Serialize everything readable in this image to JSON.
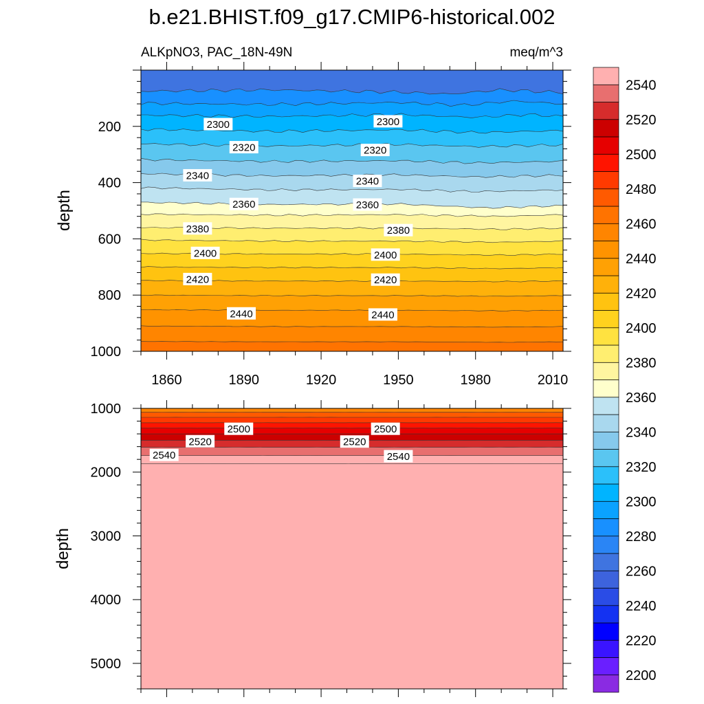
{
  "figure": {
    "title": "b.e21.BHIST.f09_g17.CMIP6-historical.002",
    "left_label": "ALKpNO3, PAC_18N-49N",
    "right_label": "meq/m^3"
  },
  "chart_data": [
    {
      "type": "contour",
      "panel": "upper",
      "ylabel": "depth",
      "xlim": [
        1850,
        2014
      ],
      "ylim": [
        1000,
        0
      ],
      "x_ticks": [
        1860,
        1890,
        1920,
        1950,
        1980,
        2010
      ],
      "y_ticks": [
        200,
        400,
        600,
        800,
        1000
      ],
      "contour_lines": [
        {
          "level": 2280,
          "depth_by_year": [
            [
              1850,
              75
            ],
            [
              1900,
              70
            ],
            [
              1950,
              78
            ],
            [
              1970,
              85
            ],
            [
              1990,
              70
            ],
            [
              2014,
              80
            ]
          ]
        },
        {
          "level": 2290,
          "depth_by_year": [
            [
              1850,
              118
            ],
            [
              1900,
              122
            ],
            [
              1950,
              115
            ],
            [
              1975,
              125
            ],
            [
              1995,
              110
            ],
            [
              2014,
              120
            ]
          ]
        },
        {
          "level": 2300,
          "depth_by_year": [
            [
              1850,
              160
            ],
            [
              1900,
              165
            ],
            [
              1950,
              158
            ],
            [
              1980,
              168
            ],
            [
              2000,
              158
            ],
            [
              2014,
              165
            ]
          ]
        },
        {
          "level": 2310,
          "depth_by_year": [
            [
              1850,
              210
            ],
            [
              1900,
              218
            ],
            [
              1950,
              212
            ],
            [
              1980,
              222
            ],
            [
              2014,
              215
            ]
          ]
        },
        {
          "level": 2320,
          "depth_by_year": [
            [
              1850,
              262
            ],
            [
              1900,
              270
            ],
            [
              1950,
              264
            ],
            [
              1980,
              272
            ],
            [
              2014,
              266
            ]
          ]
        },
        {
          "level": 2330,
          "depth_by_year": [
            [
              1850,
              318
            ],
            [
              1900,
              325
            ],
            [
              1950,
              322
            ],
            [
              1980,
              330
            ],
            [
              2014,
              324
            ]
          ]
        },
        {
          "level": 2340,
          "depth_by_year": [
            [
              1850,
              368
            ],
            [
              1900,
              376
            ],
            [
              1950,
              372
            ],
            [
              1980,
              380
            ],
            [
              2014,
              374
            ]
          ]
        },
        {
          "level": 2350,
          "depth_by_year": [
            [
              1850,
              418
            ],
            [
              1900,
              426
            ],
            [
              1950,
              424
            ],
            [
              1980,
              432
            ],
            [
              2014,
              426
            ]
          ]
        },
        {
          "level": 2360,
          "depth_by_year": [
            [
              1850,
              470
            ],
            [
              1900,
              478
            ],
            [
              1950,
              476
            ],
            [
              1985,
              490
            ],
            [
              2014,
              482
            ]
          ]
        },
        {
          "level": 2370,
          "depth_by_year": [
            [
              1850,
              512
            ],
            [
              1900,
              516
            ],
            [
              1950,
              514
            ],
            [
              1990,
              520
            ],
            [
              2014,
              514
            ]
          ]
        },
        {
          "level": 2380,
          "depth_by_year": [
            [
              1850,
              560
            ],
            [
              1900,
              562
            ],
            [
              1950,
              562
            ],
            [
              1990,
              566
            ],
            [
              2014,
              562
            ]
          ]
        },
        {
          "level": 2390,
          "depth_by_year": [
            [
              1850,
              604
            ],
            [
              1900,
              608
            ],
            [
              1950,
              608
            ],
            [
              1990,
              612
            ],
            [
              2014,
              608
            ]
          ]
        },
        {
          "level": 2400,
          "depth_by_year": [
            [
              1850,
              652
            ],
            [
              1900,
              654
            ],
            [
              1950,
              654
            ],
            [
              1990,
              658
            ],
            [
              2014,
              654
            ]
          ]
        },
        {
          "level": 2410,
          "depth_by_year": [
            [
              1850,
              700
            ],
            [
              1900,
              702
            ],
            [
              1950,
              702
            ],
            [
              1990,
              706
            ],
            [
              2014,
              702
            ]
          ]
        },
        {
          "level": 2420,
          "depth_by_year": [
            [
              1850,
              748
            ],
            [
              1900,
              750
            ],
            [
              1950,
              750
            ],
            [
              1990,
              752
            ],
            [
              2014,
              750
            ]
          ]
        },
        {
          "level": 2430,
          "depth_by_year": [
            [
              1850,
              800
            ],
            [
              1900,
              802
            ],
            [
              1950,
              802
            ],
            [
              1990,
              804
            ],
            [
              2014,
              802
            ]
          ]
        },
        {
          "level": 2440,
          "depth_by_year": [
            [
              1850,
              852
            ],
            [
              1900,
              854
            ],
            [
              1950,
              854
            ],
            [
              1990,
              856
            ],
            [
              2014,
              854
            ]
          ]
        },
        {
          "level": 2450,
          "depth_by_year": [
            [
              1850,
              910
            ],
            [
              1900,
              912
            ],
            [
              1950,
              912
            ],
            [
              1990,
              914
            ],
            [
              2014,
              912
            ]
          ]
        },
        {
          "level": 2460,
          "depth_by_year": [
            [
              1850,
              965
            ],
            [
              1900,
              966
            ],
            [
              1950,
              966
            ],
            [
              1990,
              968
            ],
            [
              2014,
              966
            ]
          ]
        }
      ],
      "labels": [
        {
          "text": "2300",
          "year": 1880,
          "depth": 192
        },
        {
          "text": "2300",
          "year": 1946,
          "depth": 182
        },
        {
          "text": "2320",
          "year": 1890,
          "depth": 274
        },
        {
          "text": "2320",
          "year": 1941,
          "depth": 284
        },
        {
          "text": "2340",
          "year": 1872,
          "depth": 374
        },
        {
          "text": "2340",
          "year": 1938,
          "depth": 394
        },
        {
          "text": "2360",
          "year": 1890,
          "depth": 476
        },
        {
          "text": "2360",
          "year": 1938,
          "depth": 478
        },
        {
          "text": "2380",
          "year": 1872,
          "depth": 563
        },
        {
          "text": "2380",
          "year": 1950,
          "depth": 569
        },
        {
          "text": "2400",
          "year": 1875,
          "depth": 650
        },
        {
          "text": "2400",
          "year": 1945,
          "depth": 656
        },
        {
          "text": "2420",
          "year": 1872,
          "depth": 743
        },
        {
          "text": "2420",
          "year": 1945,
          "depth": 745
        },
        {
          "text": "2440",
          "year": 1889,
          "depth": 865
        },
        {
          "text": "2440",
          "year": 1944,
          "depth": 869
        }
      ]
    },
    {
      "type": "contour",
      "panel": "lower",
      "ylabel": "depth",
      "xlim": [
        1850,
        2014
      ],
      "ylim": [
        5400,
        1000
      ],
      "y_ticks": [
        1000,
        2000,
        3000,
        4000,
        5000
      ],
      "contour_lines": [
        {
          "level": 2470,
          "depth_by_year": [
            [
              1850,
              1060
            ],
            [
              2014,
              1060
            ]
          ]
        },
        {
          "level": 2480,
          "depth_by_year": [
            [
              1850,
              1140
            ],
            [
              2014,
              1140
            ]
          ]
        },
        {
          "level": 2490,
          "depth_by_year": [
            [
              1850,
              1225
            ],
            [
              2014,
              1225
            ]
          ]
        },
        {
          "level": 2500,
          "depth_by_year": [
            [
              1850,
              1310
            ],
            [
              2014,
              1310
            ]
          ]
        },
        {
          "level": 2510,
          "depth_by_year": [
            [
              1850,
              1400
            ],
            [
              2014,
              1400
            ]
          ]
        },
        {
          "level": 2520,
          "depth_by_year": [
            [
              1850,
              1500
            ],
            [
              2014,
              1500
            ]
          ]
        },
        {
          "level": 2530,
          "depth_by_year": [
            [
              1850,
              1610
            ],
            [
              2014,
              1610
            ]
          ]
        },
        {
          "level": 2540,
          "depth_by_year": [
            [
              1850,
              1740
            ],
            [
              2014,
              1740
            ]
          ]
        },
        {
          "level": 2550,
          "depth_by_year": [
            [
              1850,
              1870
            ],
            [
              2014,
              1870
            ]
          ]
        }
      ],
      "labels": [
        {
          "text": "2500",
          "year": 1888,
          "depth": 1320
        },
        {
          "text": "2500",
          "year": 1945,
          "depth": 1320
        },
        {
          "text": "2520",
          "year": 1873,
          "depth": 1515
        },
        {
          "text": "2520",
          "year": 1933,
          "depth": 1520
        },
        {
          "text": "2540",
          "year": 1859,
          "depth": 1730
        },
        {
          "text": "2540",
          "year": 1950,
          "depth": 1750
        }
      ]
    }
  ],
  "colorbar": {
    "levels": [
      2200,
      2210,
      2220,
      2230,
      2240,
      2250,
      2260,
      2270,
      2280,
      2290,
      2300,
      2310,
      2320,
      2330,
      2340,
      2350,
      2360,
      2370,
      2380,
      2390,
      2400,
      2410,
      2420,
      2430,
      2440,
      2450,
      2460,
      2470,
      2480,
      2490,
      2500,
      2510,
      2520,
      2530,
      2540,
      2550
    ],
    "tick_labels": [
      "2200",
      "2220",
      "2240",
      "2260",
      "2280",
      "2300",
      "2320",
      "2340",
      "2360",
      "2380",
      "2400",
      "2420",
      "2440",
      "2460",
      "2480",
      "2500",
      "2520",
      "2540"
    ],
    "colors": [
      "#8a2be2",
      "#6a1fff",
      "#3a14ff",
      "#0000ff",
      "#1432f2",
      "#2a4ce6",
      "#3d63dd",
      "#3f74e0",
      "#2a85f5",
      "#1890ff",
      "#0aa2ff",
      "#00b4ff",
      "#2bc0fa",
      "#5ac6f0",
      "#86c9ec",
      "#a9d8ee",
      "#bfe3f1",
      "#ffffcc",
      "#fff5a0",
      "#ffee70",
      "#ffe240",
      "#ffd21e",
      "#ffc310",
      "#ffb10a",
      "#ffa104",
      "#ff9300",
      "#ff8500",
      "#ff7300",
      "#ff5a00",
      "#ff3a00",
      "#ff1400",
      "#e60000",
      "#cc0000",
      "#d62c2c",
      "#e86f6f",
      "#ffb0b0"
    ]
  }
}
